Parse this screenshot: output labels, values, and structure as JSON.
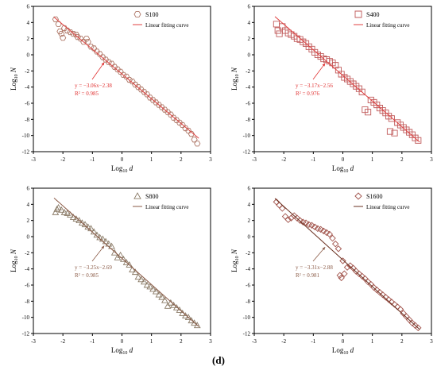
{
  "figure_label": "(d)",
  "chart_data": [
    {
      "type": "scatter",
      "panel": "S100",
      "xlabel_base": "Log",
      "xlabel_sub": "10",
      "xlabel_var": "d",
      "ylabel_base": "Log",
      "ylabel_sub": "10",
      "ylabel_var": "N",
      "xlim": [
        -3,
        3
      ],
      "ylim": [
        -12,
        6
      ],
      "xticks": [
        -3,
        -2,
        -1,
        0,
        1,
        2,
        3
      ],
      "yticks": [
        -12,
        -10,
        -8,
        -6,
        -4,
        -2,
        0,
        2,
        4,
        6
      ],
      "marker": "hexagon",
      "legend": {
        "placement": "top-right",
        "series_label": "S100",
        "fit_label": "Linear fitting curve"
      },
      "color_marker": "#b07a6a",
      "color_fit": "#e04040",
      "color_annotation": "#e03030",
      "fit": {
        "slope": -3.06,
        "intercept": -2.38,
        "x_range": [
          -2.3,
          2.6
        ]
      },
      "equation": "y = −3.06x−2.38",
      "r2": "R² = 0.985",
      "points": {
        "x": [
          -2.25,
          -2.15,
          -2.1,
          -2.05,
          -2.0,
          -1.95,
          -1.85,
          -1.75,
          -1.65,
          -1.55,
          -1.5,
          -1.4,
          -1.3,
          -1.2,
          -1.15,
          -1.05,
          -0.95,
          -0.85,
          -0.75,
          -0.65,
          -0.55,
          -0.45,
          -0.35,
          -0.25,
          -0.15,
          -0.05,
          0.05,
          0.15,
          0.25,
          0.35,
          0.45,
          0.55,
          0.65,
          0.75,
          0.85,
          0.95,
          1.05,
          1.15,
          1.25,
          1.35,
          1.45,
          1.55,
          1.65,
          1.75,
          1.85,
          1.95,
          2.05,
          2.15,
          2.25,
          2.35,
          2.45,
          2.55
        ],
        "y": [
          4.4,
          3.8,
          2.9,
          2.6,
          2.1,
          3.3,
          3.0,
          2.8,
          2.6,
          2.5,
          2.2,
          2.0,
          1.6,
          2.0,
          1.6,
          1.0,
          0.8,
          0.4,
          0.1,
          -0.3,
          -0.6,
          -0.9,
          -1.1,
          -1.5,
          -1.8,
          -2.1,
          -2.5,
          -2.7,
          -3.1,
          -3.3,
          -3.7,
          -4.0,
          -4.3,
          -4.6,
          -4.9,
          -5.3,
          -5.6,
          -5.9,
          -6.2,
          -6.5,
          -6.8,
          -7.1,
          -7.4,
          -7.8,
          -8.1,
          -8.4,
          -8.7,
          -9.1,
          -9.4,
          -9.8,
          -10.5,
          -11.0
        ]
      }
    },
    {
      "type": "scatter",
      "panel": "S400",
      "xlabel_base": "Log",
      "xlabel_sub": "10",
      "xlabel_var": "d",
      "ylabel_base": "Log",
      "ylabel_sub": "10",
      "ylabel_var": "N",
      "xlim": [
        -3,
        3
      ],
      "ylim": [
        -12,
        6
      ],
      "xticks": [
        -3,
        -2,
        -1,
        0,
        1,
        2,
        3
      ],
      "yticks": [
        -12,
        -10,
        -8,
        -6,
        -4,
        -2,
        0,
        2,
        4,
        6
      ],
      "marker": "square",
      "legend": {
        "placement": "top-right",
        "series_label": "S400",
        "fit_label": "Linear fitting curve"
      },
      "color_marker": "#c05a5a",
      "color_fit": "#e04040",
      "color_annotation": "#e03030",
      "fit": {
        "slope": -3.17,
        "intercept": -2.56,
        "x_range": [
          -2.3,
          2.6
        ]
      },
      "equation": "y = −3.17x−2.56",
      "r2": "R² = 0.976",
      "points": {
        "x": [
          -2.25,
          -2.2,
          -2.15,
          -2.05,
          -1.95,
          -1.85,
          -1.75,
          -1.65,
          -1.55,
          -1.45,
          -1.35,
          -1.25,
          -1.15,
          -1.05,
          -0.95,
          -0.85,
          -0.75,
          -0.65,
          -0.55,
          -0.45,
          -0.35,
          -0.25,
          -0.15,
          -0.05,
          0.05,
          0.15,
          0.25,
          0.35,
          0.45,
          0.55,
          0.65,
          0.75,
          0.85,
          0.95,
          1.05,
          1.15,
          1.25,
          1.35,
          1.45,
          1.55,
          1.6,
          1.65,
          1.75,
          1.85,
          1.95,
          2.05,
          2.15,
          2.25,
          2.35,
          2.45,
          2.55
        ],
        "y": [
          3.8,
          3.0,
          2.6,
          3.5,
          3.0,
          2.7,
          2.5,
          2.3,
          2.0,
          1.9,
          1.6,
          1.4,
          1.0,
          0.7,
          0.3,
          0.0,
          -0.2,
          -0.5,
          -0.6,
          -0.8,
          -1.0,
          -1.3,
          -1.9,
          -2.4,
          -2.8,
          -3.0,
          -3.3,
          -3.6,
          -3.9,
          -4.2,
          -4.6,
          -6.8,
          -7.1,
          -5.6,
          -5.9,
          -6.2,
          -6.6,
          -6.9,
          -7.2,
          -7.6,
          -9.5,
          -7.9,
          -9.7,
          -8.4,
          -8.7,
          -9.0,
          -9.3,
          -9.6,
          -9.9,
          -10.3,
          -10.6
        ]
      }
    },
    {
      "type": "scatter",
      "panel": "S800",
      "xlabel_base": "Log",
      "xlabel_sub": "10",
      "xlabel_var": "d",
      "ylabel_base": "Log",
      "ylabel_sub": "10",
      "ylabel_var": "N",
      "xlim": [
        -3,
        3
      ],
      "ylim": [
        -12,
        6
      ],
      "xticks": [
        -3,
        -2,
        -1,
        0,
        1,
        2,
        3
      ],
      "yticks": [
        -12,
        -10,
        -8,
        -6,
        -4,
        -2,
        0,
        2,
        4,
        6
      ],
      "marker": "triangle",
      "legend": {
        "placement": "top-right",
        "series_label": "S800",
        "fit_label": "Linear fitting curve"
      },
      "color_marker": "#8a7a66",
      "color_fit": "#8a5a46",
      "color_annotation": "#8a5a46",
      "fit": {
        "slope": -3.25,
        "intercept": -2.69,
        "x_range": [
          -2.3,
          2.6
        ]
      },
      "equation": "y = −3.25x−2.69",
      "r2": "R² = 0.985",
      "points": {
        "x": [
          -2.25,
          -2.2,
          -2.15,
          -2.05,
          -1.95,
          -1.85,
          -1.75,
          -1.65,
          -1.55,
          -1.45,
          -1.35,
          -1.25,
          -1.15,
          -1.05,
          -0.95,
          -0.85,
          -0.75,
          -0.65,
          -0.55,
          -0.45,
          -0.35,
          -0.25,
          -0.15,
          -0.05,
          0.05,
          0.15,
          0.25,
          0.35,
          0.45,
          0.55,
          0.65,
          0.75,
          0.85,
          0.95,
          1.05,
          1.15,
          1.25,
          1.35,
          1.45,
          1.55,
          1.65,
          1.75,
          1.85,
          1.95,
          2.05,
          2.15,
          2.25,
          2.35,
          2.45,
          2.55
        ],
        "y": [
          3.0,
          3.4,
          3.6,
          3.3,
          3.0,
          2.9,
          2.7,
          2.4,
          2.2,
          2.0,
          1.7,
          1.5,
          1.2,
          1.0,
          0.6,
          0.2,
          -0.1,
          -0.3,
          -0.6,
          -0.9,
          -1.2,
          -2.0,
          -2.6,
          -2.3,
          -2.8,
          -3.2,
          -3.5,
          -4.1,
          -4.4,
          -5.0,
          -5.3,
          -5.6,
          -6.0,
          -6.2,
          -6.5,
          -6.8,
          -7.2,
          -7.5,
          -7.9,
          -8.6,
          -8.2,
          -8.5,
          -8.8,
          -9.1,
          -9.5,
          -9.8,
          -10.0,
          -10.4,
          -10.7,
          -11.0
        ]
      }
    },
    {
      "type": "scatter",
      "panel": "S1600",
      "xlabel_base": "Log",
      "xlabel_sub": "10",
      "xlabel_var": "d",
      "ylabel_base": "Log",
      "ylabel_sub": "10",
      "ylabel_var": "N",
      "xlim": [
        -3,
        3
      ],
      "ylim": [
        -12,
        6
      ],
      "xticks": [
        -3,
        -2,
        -1,
        0,
        1,
        2,
        3
      ],
      "yticks": [
        -12,
        -10,
        -8,
        -6,
        -4,
        -2,
        0,
        2,
        4,
        6
      ],
      "marker": "diamond",
      "legend": {
        "placement": "top-right",
        "series_label": "S1600",
        "fit_label": "Linear fitting curve"
      },
      "color_marker": "#a0524a",
      "color_fit": "#6a3020",
      "color_annotation": "#8a5a46",
      "fit": {
        "slope": -3.31,
        "intercept": -2.88,
        "x_range": [
          -2.3,
          2.6
        ]
      },
      "equation": "y = −3.31x−2.88",
      "r2": "R² = 0.981",
      "points": {
        "x": [
          -2.25,
          -2.15,
          -2.05,
          -1.95,
          -1.85,
          -1.75,
          -1.65,
          -1.55,
          -1.45,
          -1.35,
          -1.25,
          -1.15,
          -1.05,
          -0.95,
          -0.85,
          -0.75,
          -0.65,
          -0.55,
          -0.45,
          -0.35,
          -0.25,
          -0.15,
          -0.1,
          -0.05,
          0.0,
          0.05,
          0.15,
          0.25,
          0.35,
          0.45,
          0.55,
          0.65,
          0.75,
          0.85,
          0.95,
          1.05,
          1.15,
          1.25,
          1.35,
          1.45,
          1.55,
          1.65,
          1.75,
          1.85,
          1.95,
          2.05,
          2.15,
          2.25,
          2.35,
          2.45,
          2.55
        ],
        "y": [
          4.3,
          3.9,
          3.5,
          2.5,
          2.1,
          2.3,
          2.6,
          2.3,
          2.0,
          1.8,
          1.7,
          1.5,
          1.4,
          1.2,
          1.0,
          0.9,
          0.7,
          0.5,
          0.3,
          -0.2,
          -0.9,
          -1.5,
          -4.8,
          -5.1,
          -3.0,
          -4.6,
          -3.8,
          -3.6,
          -3.9,
          -4.3,
          -4.6,
          -4.9,
          -5.2,
          -5.6,
          -5.9,
          -6.3,
          -6.6,
          -6.9,
          -7.2,
          -7.5,
          -7.8,
          -8.1,
          -8.4,
          -8.7,
          -9.0,
          -9.5,
          -9.9,
          -10.3,
          -10.7,
          -11.0,
          -11.3
        ]
      }
    }
  ]
}
